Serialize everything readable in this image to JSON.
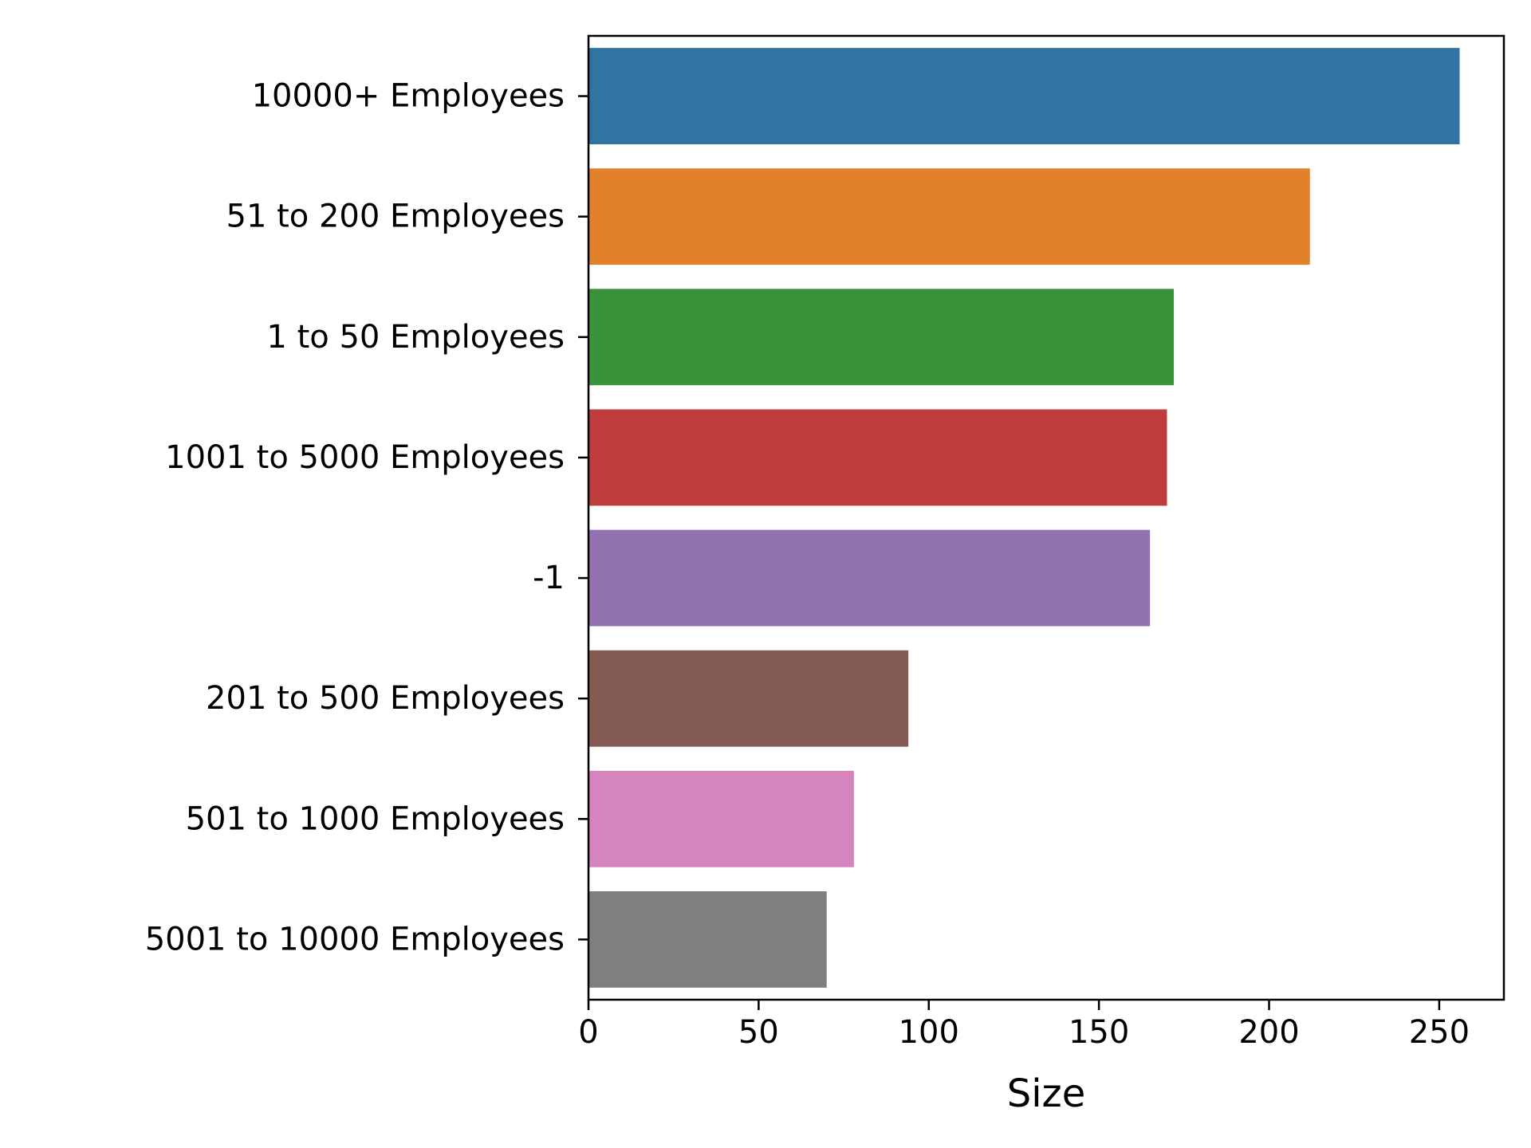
{
  "chart_data": {
    "type": "bar",
    "orientation": "horizontal",
    "categories": [
      "10000+ Employees",
      "51 to 200 Employees",
      "1 to 50 Employees",
      "1001 to 5000 Employees",
      "-1",
      "201 to 500 Employees",
      "501 to 1000 Employees",
      "5001 to 10000 Employees"
    ],
    "values": [
      256,
      212,
      172,
      170,
      165,
      94,
      78,
      70
    ],
    "colors": [
      "#3274a1",
      "#e1812c",
      "#3a923a",
      "#c03d3e",
      "#9372b2",
      "#845b53",
      "#d684bd",
      "#7f7f7f"
    ],
    "title": "",
    "xlabel": "Size",
    "ylabel": "",
    "xlim": [
      0,
      269
    ],
    "xticks": [
      0,
      50,
      100,
      150,
      200,
      250
    ],
    "xtick_labels": [
      "0",
      "50",
      "100",
      "150",
      "200",
      "250"
    ],
    "grid": false,
    "legend": "none"
  }
}
